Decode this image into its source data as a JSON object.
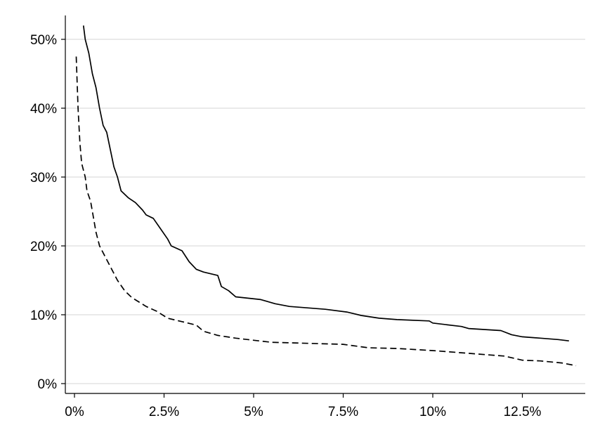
{
  "chart_data": {
    "type": "line",
    "title": "",
    "xlabel": "",
    "ylabel": "",
    "xlim": [
      0,
      14
    ],
    "ylim": [
      0,
      52
    ],
    "x_ticks": [
      {
        "value": 0,
        "label": "0%"
      },
      {
        "value": 2.5,
        "label": "2.5%"
      },
      {
        "value": 5,
        "label": "5%"
      },
      {
        "value": 7.5,
        "label": "7.5%"
      },
      {
        "value": 10,
        "label": "10%"
      },
      {
        "value": 12.5,
        "label": "12.5%"
      }
    ],
    "y_ticks": [
      {
        "value": 0,
        "label": "0%"
      },
      {
        "value": 10,
        "label": "10%"
      },
      {
        "value": 20,
        "label": "20%"
      },
      {
        "value": 30,
        "label": "30%"
      },
      {
        "value": 40,
        "label": "40%"
      },
      {
        "value": 50,
        "label": "50%"
      }
    ],
    "grid": "horizontal",
    "legend": "none",
    "series": [
      {
        "style": "solid",
        "color": "#000000",
        "points": [
          [
            0.25,
            52
          ],
          [
            0.3,
            50
          ],
          [
            0.4,
            48
          ],
          [
            0.5,
            45
          ],
          [
            0.6,
            43
          ],
          [
            0.7,
            40
          ],
          [
            0.8,
            37.5
          ],
          [
            0.9,
            36.5
          ],
          [
            1.0,
            34
          ],
          [
            1.1,
            31.5
          ],
          [
            1.2,
            30
          ],
          [
            1.3,
            28
          ],
          [
            1.5,
            27
          ],
          [
            1.7,
            26.3
          ],
          [
            1.9,
            25.2
          ],
          [
            2.0,
            24.5
          ],
          [
            2.2,
            24
          ],
          [
            2.4,
            22.5
          ],
          [
            2.6,
            21
          ],
          [
            2.7,
            20
          ],
          [
            3.0,
            19.3
          ],
          [
            3.2,
            17.7
          ],
          [
            3.4,
            16.6
          ],
          [
            3.6,
            16.2
          ],
          [
            4.0,
            15.7
          ],
          [
            4.1,
            14.1
          ],
          [
            4.3,
            13.5
          ],
          [
            4.5,
            12.6
          ],
          [
            5.2,
            12.2
          ],
          [
            5.6,
            11.6
          ],
          [
            6.0,
            11.2
          ],
          [
            7.0,
            10.8
          ],
          [
            7.6,
            10.4
          ],
          [
            8.0,
            9.9
          ],
          [
            8.5,
            9.5
          ],
          [
            9.0,
            9.3
          ],
          [
            9.9,
            9.1
          ],
          [
            10.0,
            8.8
          ],
          [
            10.8,
            8.3
          ],
          [
            11.0,
            8.0
          ],
          [
            11.9,
            7.7
          ],
          [
            12.2,
            7.1
          ],
          [
            12.5,
            6.8
          ],
          [
            13.0,
            6.6
          ],
          [
            13.5,
            6.4
          ],
          [
            13.8,
            6.2
          ]
        ]
      },
      {
        "style": "dashed",
        "color": "#000000",
        "points": [
          [
            0.05,
            47.5
          ],
          [
            0.1,
            40
          ],
          [
            0.15,
            35
          ],
          [
            0.2,
            32
          ],
          [
            0.3,
            30
          ],
          [
            0.35,
            28
          ],
          [
            0.45,
            26.5
          ],
          [
            0.5,
            25
          ],
          [
            0.6,
            22
          ],
          [
            0.7,
            20
          ],
          [
            0.8,
            19
          ],
          [
            0.9,
            18
          ],
          [
            1.0,
            17
          ],
          [
            1.2,
            15
          ],
          [
            1.4,
            13.5
          ],
          [
            1.6,
            12.5
          ],
          [
            2.0,
            11.2
          ],
          [
            2.3,
            10.5
          ],
          [
            2.6,
            9.5
          ],
          [
            3.0,
            9.0
          ],
          [
            3.4,
            8.5
          ],
          [
            3.6,
            7.6
          ],
          [
            4.0,
            7.0
          ],
          [
            4.5,
            6.6
          ],
          [
            5.0,
            6.3
          ],
          [
            5.5,
            6.0
          ],
          [
            7.5,
            5.7
          ],
          [
            8.2,
            5.2
          ],
          [
            9.0,
            5.1
          ],
          [
            10.0,
            4.8
          ],
          [
            11.0,
            4.4
          ],
          [
            12.0,
            4.0
          ],
          [
            12.5,
            3.4
          ],
          [
            13.0,
            3.3
          ],
          [
            13.6,
            3.0
          ],
          [
            14.0,
            2.6
          ]
        ]
      }
    ]
  }
}
